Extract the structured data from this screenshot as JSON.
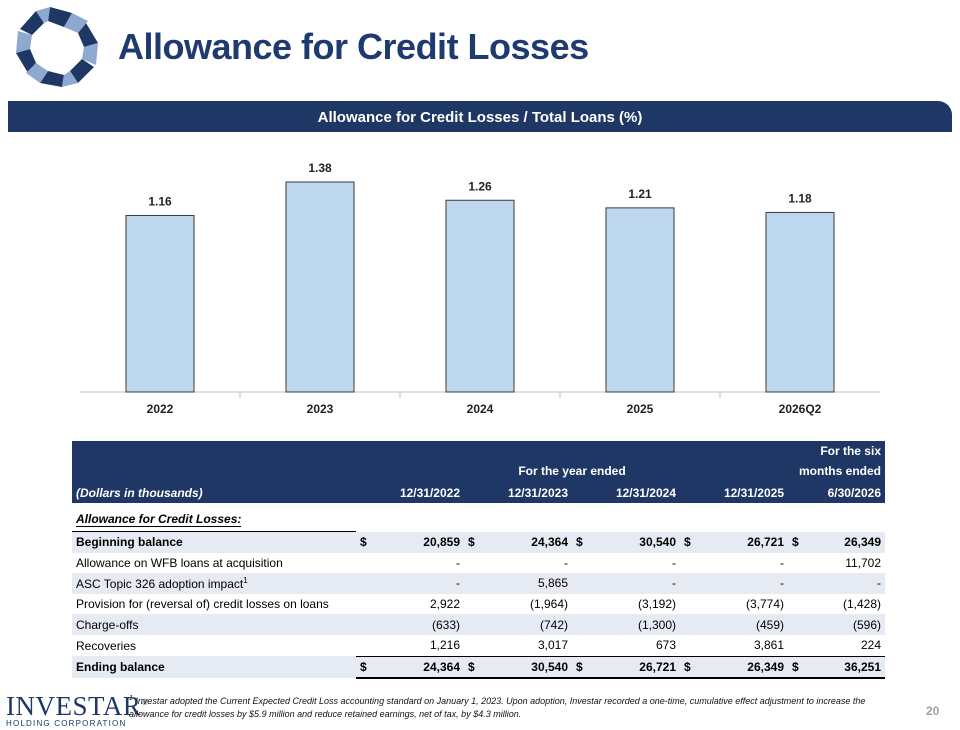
{
  "header": {
    "title": "Allowance for Credit Losses"
  },
  "banner": {
    "title": "Allowance for Credit Losses / Total Loans (%)"
  },
  "colors": {
    "navy": "#1f3764",
    "bar_fill": "#bdd7ee",
    "bar_stroke": "#3a3a3a",
    "row_alt": "#e6ebf3"
  },
  "chart_data": {
    "type": "bar",
    "title": "Allowance for Credit Losses / Total Loans (%)",
    "categories": [
      "2022",
      "2023",
      "2024",
      "2025",
      "2026Q2"
    ],
    "values": [
      1.16,
      1.38,
      1.26,
      1.21,
      1.18
    ],
    "data_labels": [
      "1.16",
      "1.38",
      "1.26",
      "1.21",
      "1.18"
    ],
    "ylim": [
      0,
      1.6
    ],
    "grid": false,
    "legend": "none"
  },
  "table": {
    "header_group_year": "For the year ended",
    "header_group_six_line1": "For the six",
    "header_group_six_line2": "months ended",
    "units_label": "(Dollars in thousands)",
    "columns": [
      "12/31/2022",
      "12/31/2023",
      "12/31/2024",
      "12/31/2025",
      "6/30/2026"
    ],
    "section_label": "Allowance for Credit Losses:",
    "rows": [
      {
        "label": "Beginning balance",
        "values": [
          "20,859",
          "24,364",
          "30,540",
          "26,721",
          "26,349"
        ],
        "currency": [
          "$",
          "$",
          "$",
          "$",
          "$"
        ]
      },
      {
        "label": "Allowance on WFB loans at acquisition",
        "values": [
          "-",
          "-",
          "-",
          "-",
          "11,702"
        ]
      },
      {
        "label": "ASC Topic 326 adoption impact",
        "sup": "1",
        "values": [
          "-",
          "5,865",
          "-",
          "-",
          "-"
        ]
      },
      {
        "label": "Provision for (reversal of) credit losses on loans",
        "values": [
          "2,922",
          "(1,964)",
          "(3,192)",
          "(3,774)",
          "(1,428)"
        ]
      },
      {
        "label": "Charge-offs",
        "values": [
          "(633)",
          "(742)",
          "(1,300)",
          "(459)",
          "(596)"
        ]
      },
      {
        "label": "Recoveries",
        "values": [
          "1,216",
          "3,017",
          "673",
          "3,861",
          "224"
        ]
      },
      {
        "label": "Ending balance",
        "values": [
          "24,364",
          "30,540",
          "26,721",
          "26,349",
          "36,251"
        ],
        "currency": [
          "$",
          "$",
          "$",
          "$",
          "$"
        ]
      }
    ]
  },
  "footnote": {
    "marker": "1",
    "text": "Investar adopted the Current Expected Credit Loss accounting standard on January 1, 2023. Upon adoption, Investar recorded a one-time, cumulative effect adjustment to increase the allowance for credit losses by $5.9 million and reduce retained earnings, net of tax, by $4.3 million."
  },
  "footer": {
    "brand": "INVESTAR",
    "brand_registered": "®",
    "brand_sub": "HOLDING CORPORATION",
    "page_number": "20"
  }
}
